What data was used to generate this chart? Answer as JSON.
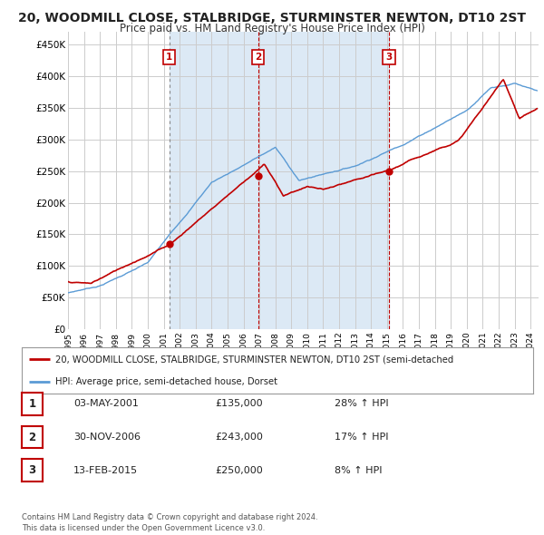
{
  "title": "20, WOODMILL CLOSE, STALBRIDGE, STURMINSTER NEWTON, DT10 2ST",
  "subtitle": "Price paid vs. HM Land Registry's House Price Index (HPI)",
  "title_fontsize": 10,
  "subtitle_fontsize": 8.5,
  "ylim": [
    0,
    470000
  ],
  "yticks": [
    0,
    50000,
    100000,
    150000,
    200000,
    250000,
    300000,
    350000,
    400000,
    450000
  ],
  "ytick_labels": [
    "£0",
    "£50K",
    "£100K",
    "£150K",
    "£200K",
    "£250K",
    "£300K",
    "£350K",
    "£400K",
    "£450K"
  ],
  "xlim_start": 1995.0,
  "xlim_end": 2024.5,
  "hpi_color": "#5B9BD5",
  "price_color": "#C00000",
  "shade_color": "#DCE9F5",
  "transactions": [
    {
      "year": 2001.34,
      "price": 135000,
      "label": "1"
    },
    {
      "year": 2006.92,
      "price": 243000,
      "label": "2"
    },
    {
      "year": 2015.12,
      "price": 250000,
      "label": "3"
    }
  ],
  "legend_property_label": "20, WOODMILL CLOSE, STALBRIDGE, STURMINSTER NEWTON, DT10 2ST (semi-detached",
  "legend_hpi_label": "HPI: Average price, semi-detached house, Dorset",
  "table_rows": [
    {
      "num": "1",
      "date": "03-MAY-2001",
      "price": "£135,000",
      "pct": "28% ↑ HPI"
    },
    {
      "num": "2",
      "date": "30-NOV-2006",
      "price": "£243,000",
      "pct": "17% ↑ HPI"
    },
    {
      "num": "3",
      "date": "13-FEB-2015",
      "price": "£250,000",
      "pct": "8% ↑ HPI"
    }
  ],
  "footer": "Contains HM Land Registry data © Crown copyright and database right 2024.\nThis data is licensed under the Open Government Licence v3.0.",
  "background_color": "#FFFFFF",
  "grid_color": "#CCCCCC"
}
